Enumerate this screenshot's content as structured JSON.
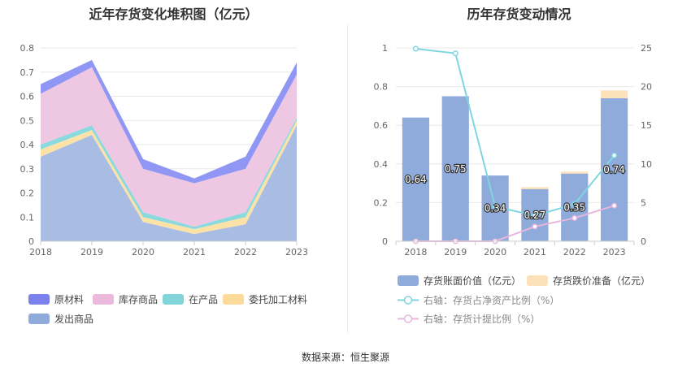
{
  "left_title": "近年存货变化堆积图（亿元）",
  "right_title": "历年存货变动情况",
  "source": "数据来源：恒生聚源",
  "chart_data": [
    {
      "type": "area",
      "stacked": true,
      "title": "近年存货变化堆积图（亿元）",
      "categories": [
        "2018",
        "2019",
        "2020",
        "2021",
        "2022",
        "2023"
      ],
      "ylim": [
        0,
        0.8
      ],
      "yticks": [
        "0",
        "0.1",
        "0.2",
        "0.3",
        "0.4",
        "0.5",
        "0.6",
        "0.7",
        "0.8"
      ],
      "grid": true,
      "legend_position": "bottom",
      "series": [
        {
          "name": "发出商品",
          "values": [
            0.35,
            0.44,
            0.08,
            0.03,
            0.07,
            0.48
          ],
          "color": "#a9bce3"
        },
        {
          "name": "委托加工材料",
          "values": [
            0.03,
            0.02,
            0.02,
            0.02,
            0.03,
            0.02
          ],
          "color": "#fde2a8"
        },
        {
          "name": "在产品",
          "values": [
            0.02,
            0.02,
            0.02,
            0.01,
            0.02,
            0.01
          ],
          "color": "#8ad9df"
        },
        {
          "name": "库存商品",
          "values": [
            0.21,
            0.24,
            0.18,
            0.18,
            0.18,
            0.18
          ],
          "color": "#eec7e3"
        },
        {
          "name": "原材料",
          "values": [
            0.04,
            0.03,
            0.04,
            0.02,
            0.05,
            0.05
          ],
          "color": "#8f96f3"
        }
      ],
      "legend_order": [
        "原材料",
        "库存商品",
        "在产品",
        "委托加工材料",
        "发出商品"
      ],
      "legend_colors": {
        "原材料": "#7b82ef",
        "库存商品": "#ecb9dc",
        "在产品": "#82d4db",
        "委托加工材料": "#fdd99a",
        "发出商品": "#8fabdc"
      }
    },
    {
      "type": "bar",
      "stacked": true,
      "title": "历年存货变动情况",
      "categories": [
        "2018",
        "2019",
        "2020",
        "2021",
        "2022",
        "2023"
      ],
      "ylim": [
        0,
        1
      ],
      "yticks": [
        "0",
        "0.2",
        "0.4",
        "0.6",
        "0.8",
        "1"
      ],
      "y2lim": [
        0,
        25
      ],
      "y2ticks": [
        "0",
        "5",
        "10",
        "15",
        "20",
        "25"
      ],
      "grid": true,
      "legend_position": "bottom",
      "series": [
        {
          "name": "存货账面价值（亿元）",
          "values": [
            0.64,
            0.75,
            0.34,
            0.27,
            0.35,
            0.74
          ],
          "labels": [
            "0.64",
            "0.75",
            "0.34",
            "0.27",
            "0.35",
            "0.74"
          ],
          "color": "#8fabdc"
        },
        {
          "name": "存货跌价准备（亿元）",
          "values": [
            0.0,
            0.0,
            0.0,
            0.01,
            0.01,
            0.04
          ],
          "color": "#fde2b9"
        }
      ],
      "lines": [
        {
          "name": "右轴：存货占净资产比例（%）",
          "axis": "right",
          "values": [
            24.9,
            24.3,
            4.5,
            3.3,
            4.8,
            11.1
          ],
          "color": "#7fd6e0"
        },
        {
          "name": "右轴：存货计提比例（%）",
          "axis": "right",
          "values": [
            0.0,
            0.0,
            0.0,
            1.9,
            3.0,
            4.6
          ],
          "color": "#e8b6dc"
        }
      ]
    }
  ]
}
